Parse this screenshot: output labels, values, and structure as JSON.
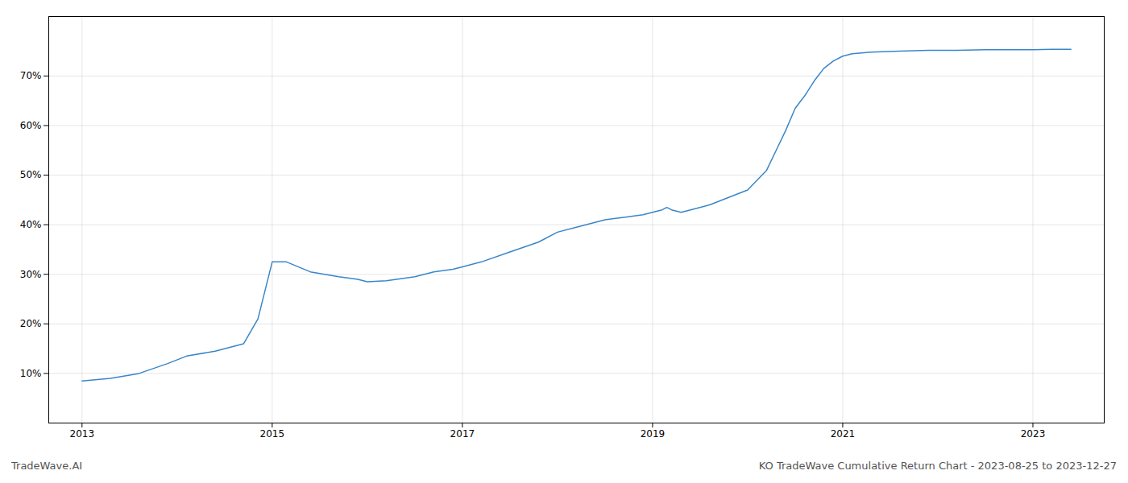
{
  "chart_data": {
    "type": "line",
    "title": "KO TradeWave Cumulative Return Chart - 2023-08-25 to 2023-12-27",
    "annotations": [
      "TradeWave.AI"
    ],
    "x": [
      2013.0,
      2013.3,
      2013.6,
      2013.9,
      2014.1,
      2014.4,
      2014.7,
      2014.85,
      2015.0,
      2015.15,
      2015.4,
      2015.7,
      2015.9,
      2016.0,
      2016.2,
      2016.5,
      2016.7,
      2016.9,
      2017.0,
      2017.2,
      2017.5,
      2017.8,
      2018.0,
      2018.2,
      2018.5,
      2018.7,
      2018.9,
      2019.0,
      2019.1,
      2019.15,
      2019.2,
      2019.3,
      2019.4,
      2019.6,
      2019.8,
      2020.0,
      2020.1,
      2020.2,
      2020.3,
      2020.4,
      2020.5,
      2020.6,
      2020.7,
      2020.8,
      2020.9,
      2021.0,
      2021.1,
      2021.3,
      2021.6,
      2021.9,
      2022.2,
      2022.5,
      2022.8,
      2023.0,
      2023.2,
      2023.4
    ],
    "values": [
      8.5,
      9.0,
      10.0,
      12.0,
      13.5,
      14.5,
      16.0,
      21.0,
      32.5,
      32.5,
      30.5,
      29.5,
      29.0,
      28.5,
      28.7,
      29.5,
      30.5,
      31.0,
      31.5,
      32.5,
      34.5,
      36.5,
      38.5,
      39.5,
      41.0,
      41.5,
      42.0,
      42.5,
      43.0,
      43.5,
      43.0,
      42.5,
      43.0,
      44.0,
      45.5,
      47.0,
      49.0,
      51.0,
      55.0,
      59.0,
      63.5,
      66.0,
      69.0,
      71.5,
      73.0,
      74.0,
      74.5,
      74.8,
      75.0,
      75.2,
      75.2,
      75.3,
      75.3,
      75.3,
      75.4,
      75.4
    ],
    "color": "#3a86c8",
    "xlim": [
      2012.65,
      2023.75
    ],
    "xticks": [
      2013,
      2015,
      2017,
      2019,
      2021,
      2023
    ],
    "ylim": [
      0,
      82
    ],
    "yticks": [
      {
        "value": 10,
        "label": "10%"
      },
      {
        "value": 20,
        "label": "20%"
      },
      {
        "value": 30,
        "label": "30%"
      },
      {
        "value": 40,
        "label": "40%"
      },
      {
        "value": 50,
        "label": "50%"
      },
      {
        "value": 60,
        "label": "60%"
      },
      {
        "value": 70,
        "label": "70%"
      }
    ],
    "grid": true
  }
}
